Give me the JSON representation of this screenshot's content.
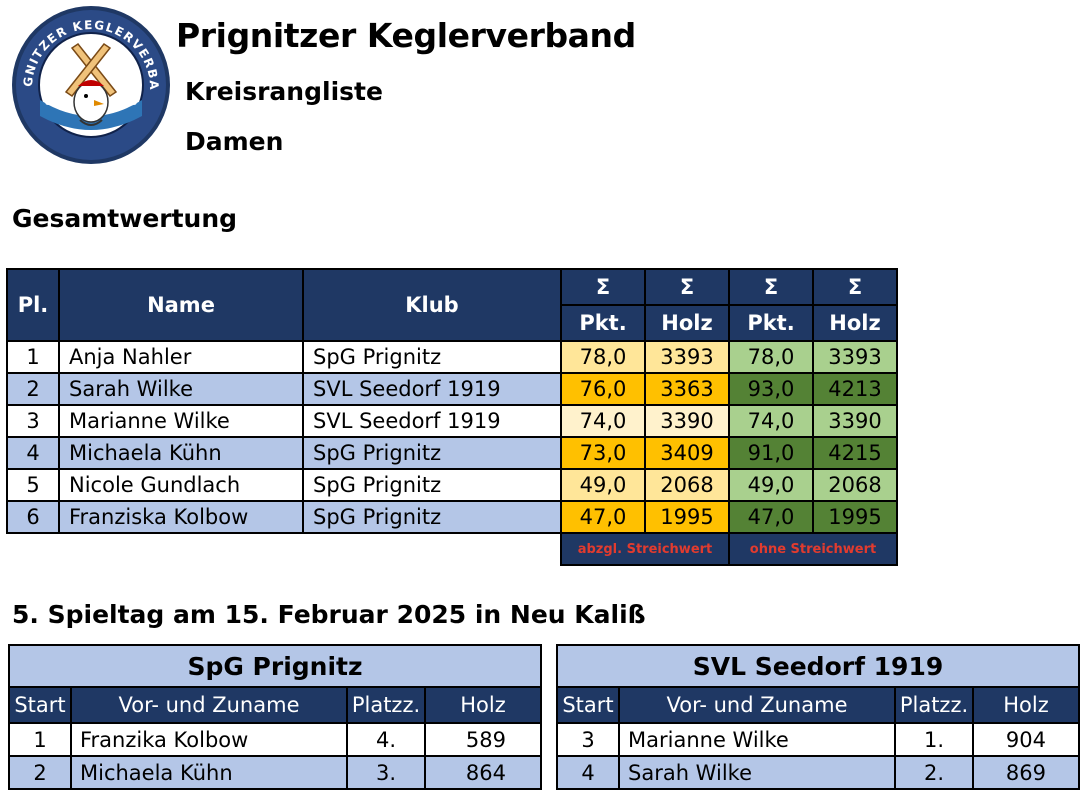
{
  "header": {
    "title": "Prignitzer Keglerverband",
    "subtitle1": "Kreisrangliste",
    "subtitle2": "Damen",
    "logo_text": "PRIGNITZER KEGLERVERBAND"
  },
  "ranking": {
    "section_title": "Gesamtwertung",
    "headers": {
      "pl": "Pl.",
      "name": "Name",
      "klub": "Klub",
      "sigma": "Σ",
      "pkt": "Pkt.",
      "holz": "Holz"
    },
    "footer_left": "abzgl. Streichwert",
    "footer_right": "ohne Streichwert",
    "rows": [
      {
        "pl": "1",
        "name": "Anja Nahler",
        "klub": "SpG Prignitz",
        "pkt1": "78,0",
        "holz1": "3393",
        "pkt2": "78,0",
        "holz2": "3393"
      },
      {
        "pl": "2",
        "name": "Sarah Wilke",
        "klub": "SVL Seedorf 1919",
        "pkt1": "76,0",
        "holz1": "3363",
        "pkt2": "93,0",
        "holz2": "4213"
      },
      {
        "pl": "3",
        "name": "Marianne Wilke",
        "klub": "SVL Seedorf 1919",
        "pkt1": "74,0",
        "holz1": "3390",
        "pkt2": "74,0",
        "holz2": "3390"
      },
      {
        "pl": "4",
        "name": "Michaela Kühn",
        "klub": "SpG Prignitz",
        "pkt1": "73,0",
        "holz1": "3409",
        "pkt2": "91,0",
        "holz2": "4215"
      },
      {
        "pl": "5",
        "name": "Nicole Gundlach",
        "klub": "SpG Prignitz",
        "pkt1": "49,0",
        "holz1": "2068",
        "pkt2": "49,0",
        "holz2": "2068"
      },
      {
        "pl": "6",
        "name": "Franziska Kolbow",
        "klub": "SpG Prignitz",
        "pkt1": "47,0",
        "holz1": "1995",
        "pkt2": "47,0",
        "holz2": "1995"
      }
    ]
  },
  "matchday": {
    "title": "5. Spieltag am 15. Februar 2025 in Neu Kaliß",
    "headers": {
      "start": "Start",
      "name": "Vor- und Zuname",
      "platz": "Platzz.",
      "holz": "Holz"
    },
    "teams": [
      {
        "name": "SpG Prignitz",
        "rows": [
          {
            "start": "1",
            "name": "Franzika Kolbow",
            "platz": "4.",
            "holz": "589"
          },
          {
            "start": "2",
            "name": "Michaela Kühn",
            "platz": "3.",
            "holz": "864"
          }
        ]
      },
      {
        "name": "SVL Seedorf 1919",
        "rows": [
          {
            "start": "3",
            "name": "Marianne Wilke",
            "platz": "1.",
            "holz": "904"
          },
          {
            "start": "4",
            "name": "Sarah Wilke",
            "platz": "2.",
            "holz": "869"
          }
        ]
      }
    ]
  },
  "colors": {
    "header_navy": "#1f3864",
    "row_blue": "#b4c6e7",
    "yellow_dark": "#ffc000",
    "yellow_light": "#ffe699",
    "yellow_pale": "#fff2cc",
    "green_dark": "#548235",
    "green_light": "#a9d08e",
    "footer_red": "#e23b2e"
  }
}
